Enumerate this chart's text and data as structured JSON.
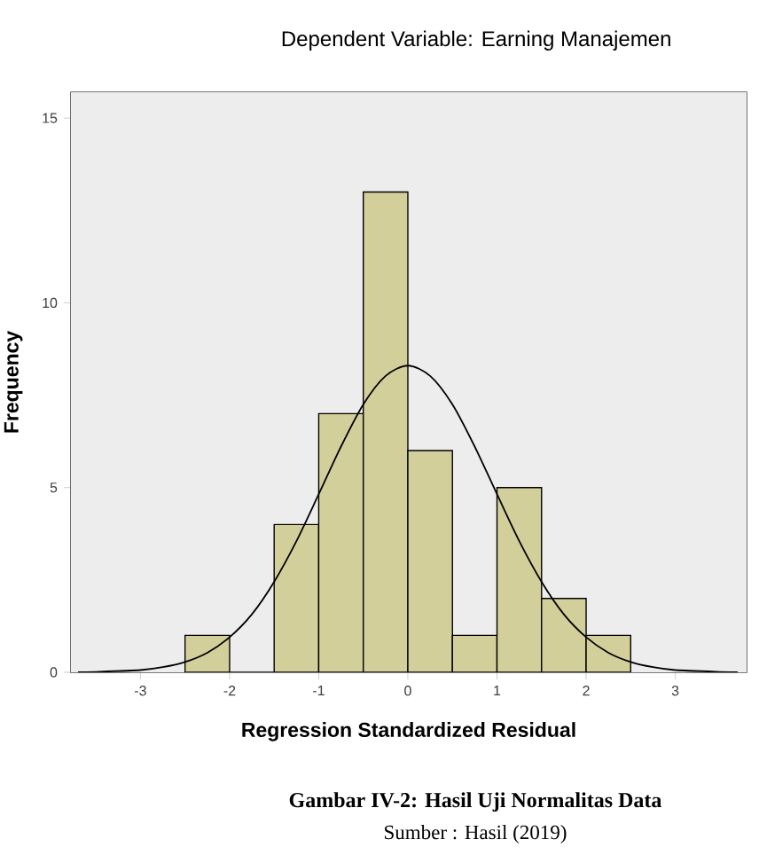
{
  "chart_data": {
    "type": "histogram",
    "title": "Dependent Variable: Earning Manajemen",
    "xlabel": "Regression Standardized Residual",
    "ylabel": "Frequency",
    "bins": [
      -2.5,
      -2,
      -1.5,
      -1,
      -0.5,
      0,
      0.5,
      1,
      1.5,
      2,
      2.5
    ],
    "values": [
      1,
      0,
      4,
      7,
      13,
      6,
      1,
      5,
      2,
      1
    ],
    "color": "#d3cf9b",
    "series": [
      {
        "type": "line",
        "color": "#000000",
        "x": [
          -3.7,
          -3.5,
          -3,
          -2.75,
          -2.5,
          -2.25,
          -2,
          -1.75,
          -1.5,
          -1.25,
          -1,
          -0.75,
          -0.5,
          -0.25,
          0,
          0.25,
          0.5,
          0.75,
          1,
          1.25,
          1.5,
          1.75,
          2,
          2.25,
          2.5,
          2.75,
          3,
          3.5,
          3.7
        ],
        "values": [
          0,
          0.01,
          0.06,
          0.14,
          0.28,
          0.53,
          0.95,
          1.57,
          2.45,
          3.55,
          4.82,
          6.11,
          7.25,
          8.02,
          8.3,
          8.02,
          7.25,
          6.11,
          4.82,
          3.55,
          2.45,
          1.57,
          0.95,
          0.53,
          0.28,
          0.14,
          0.06,
          0.01,
          0
        ]
      }
    ],
    "xlim": [
      -3.78,
      3.8
    ],
    "ylim": [
      0,
      15.7
    ],
    "xticks": [
      -3,
      -2,
      -1,
      0,
      1,
      2,
      3
    ],
    "yticks": [
      0,
      5,
      10,
      15
    ],
    "annotations": [
      "Gambar IV-2: Hasil Uji Normalitas Data",
      "Sumber : Hasil (2019)"
    ]
  }
}
